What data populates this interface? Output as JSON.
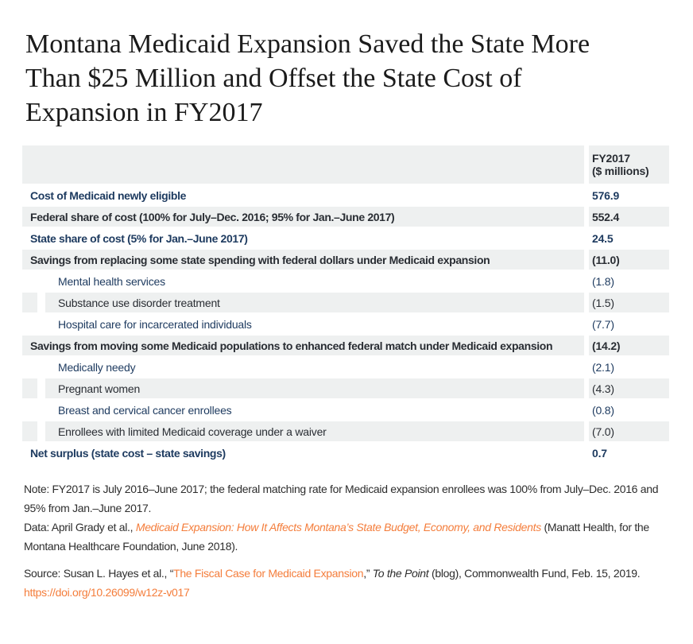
{
  "title": {
    "lines": [
      "Montana Medicaid Expansion Saved the State More",
      "Than $25 Million and Offset the State Cost of",
      "Expansion in FY2017"
    ]
  },
  "table": {
    "header": {
      "col_value_line1": "FY2017",
      "col_value_line2": "($ millions)"
    }
  },
  "chart_data": {
    "type": "table",
    "title": "Montana Medicaid Expansion Saved the State More Than $25 Million and Offset the State Cost of Expansion in FY2017",
    "columns": [
      "",
      "FY2017 ($ millions)"
    ],
    "rows": [
      {
        "label": "Cost of Medicaid newly eligible",
        "value": 576.9,
        "display": "576.9",
        "indent": false,
        "emphasis": true
      },
      {
        "label": "Federal share of cost (100% for July–Dec. 2016; 95% for Jan.–June 2017)",
        "value": 552.4,
        "display": "552.4",
        "indent": false,
        "emphasis": true
      },
      {
        "label": "State share of cost (5% for Jan.–June 2017)",
        "value": 24.5,
        "display": "24.5",
        "indent": false,
        "emphasis": true
      },
      {
        "label": "Savings from replacing some state spending with federal dollars under Medicaid expansion",
        "value": -11.0,
        "display": "(11.0)",
        "indent": false,
        "emphasis": true
      },
      {
        "label": "Mental health services",
        "value": -1.8,
        "display": "(1.8)",
        "indent": true,
        "emphasis": false
      },
      {
        "label": "Substance use disorder treatment",
        "value": -1.5,
        "display": "(1.5)",
        "indent": true,
        "emphasis": false
      },
      {
        "label": "Hospital care for incarcerated individuals",
        "value": -7.7,
        "display": "(7.7)",
        "indent": true,
        "emphasis": false
      },
      {
        "label": "Savings from moving some Medicaid populations to enhanced federal match under Medicaid expansion",
        "value": -14.2,
        "display": "(14.2)",
        "indent": false,
        "emphasis": true
      },
      {
        "label": "Medically needy",
        "value": -2.1,
        "display": "(2.1)",
        "indent": true,
        "emphasis": false
      },
      {
        "label": "Pregnant women",
        "value": -4.3,
        "display": "(4.3)",
        "indent": true,
        "emphasis": false
      },
      {
        "label": "Breast and cervical cancer enrollees",
        "value": -0.8,
        "display": "(0.8)",
        "indent": true,
        "emphasis": false
      },
      {
        "label": "Enrollees with limited Medicaid coverage under a waiver",
        "value": -7.0,
        "display": "(7.0)",
        "indent": true,
        "emphasis": false
      },
      {
        "label": "Net surplus (state cost – state savings)",
        "value": 0.7,
        "display": "0.7",
        "indent": false,
        "emphasis": true
      }
    ]
  },
  "notes": {
    "note_line1": "Note: FY2017 is July 2016–June 2017; the federal matching rate for Medicaid expansion enrollees was 100% from July–Dec. 2016 and",
    "note_line2": "95% from Jan.–June 2017.",
    "data_prefix": "Data: April Grady et al., ",
    "data_link": "Medicaid Expansion: How It Affects Montana’s State Budget, Economy, and Residents",
    "data_suffix": " (Manatt Health, for the",
    "data_line2": "Montana Healthcare Foundation, June 2018)."
  },
  "source": {
    "prefix": "Source: Susan L. Hayes et al., “",
    "link": "The Fiscal Case for Medicaid Expansion",
    "mid": ",” ",
    "italic": "To the Point",
    "suffix": " (blog), Commonwealth Fund, Feb. 15, 2019.",
    "doi": "https://doi.org/10.26099/w12z-v017"
  },
  "colors": {
    "accent_orange": "#f47d3b",
    "navy_text": "#1d3a5f",
    "charcoal_text": "#292d33",
    "row_shade": "#eef0f0"
  }
}
